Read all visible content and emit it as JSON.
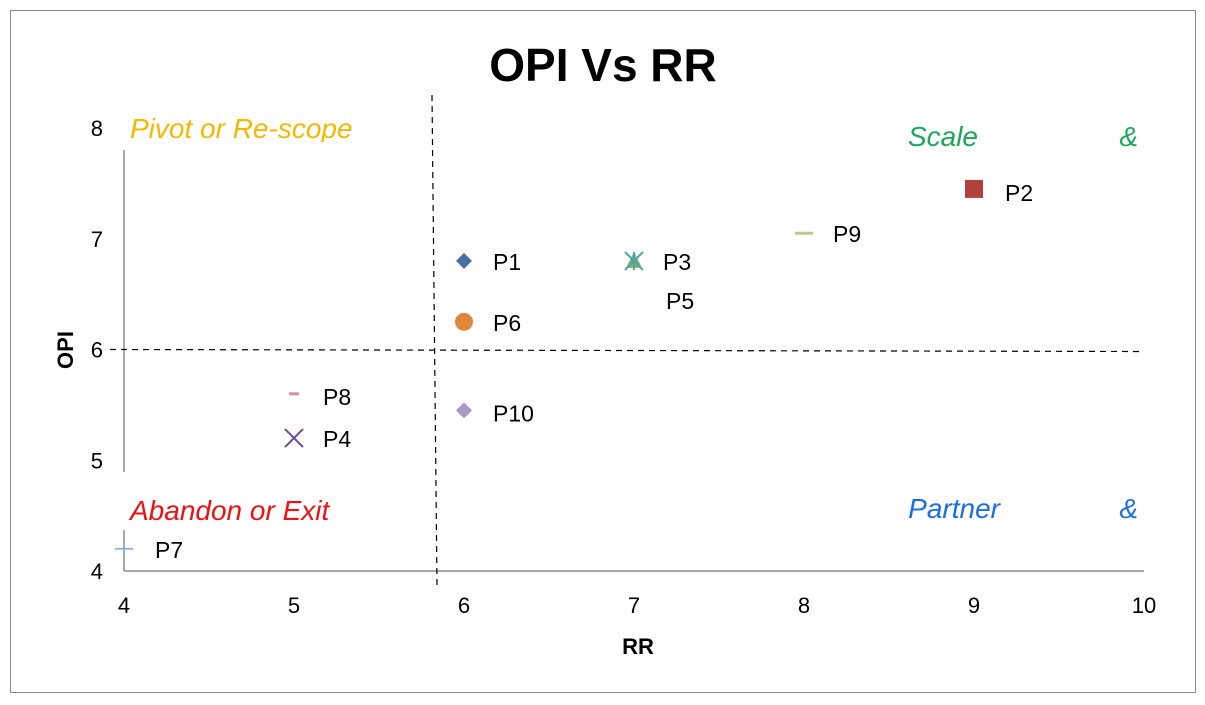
{
  "chart_data": {
    "type": "scatter",
    "title": "OPI Vs RR",
    "xlabel": "RR",
    "ylabel": "OPI",
    "xlim": [
      4,
      10
    ],
    "ylim": [
      4,
      8
    ],
    "xticks": [
      "4",
      "5",
      "6",
      "7",
      "8",
      "9",
      "10"
    ],
    "yticks": [
      "4",
      "5",
      "6",
      "7",
      "8"
    ],
    "reference_lines": {
      "x": 5.83,
      "y": 6.0
    },
    "points": [
      {
        "label": "P1",
        "x": 6,
        "y": 6.8,
        "marker": "diamond",
        "color": "#4a6fa5"
      },
      {
        "label": "P2",
        "x": 9,
        "y": 7.45,
        "marker": "square",
        "color": "#b0413e"
      },
      {
        "label": "P3",
        "x": 7,
        "y": 6.8,
        "marker": "triangle",
        "color": "#8fae4a"
      },
      {
        "label": "P4",
        "x": 5,
        "y": 5.2,
        "marker": "x",
        "color": "#6b4c9a"
      },
      {
        "label": "P5",
        "x": 7,
        "y": 6.8,
        "marker": "star",
        "color": "#4aa3b8"
      },
      {
        "label": "P6",
        "x": 6,
        "y": 6.25,
        "marker": "circle",
        "color": "#e0873a"
      },
      {
        "label": "P7",
        "x": 4,
        "y": 4.2,
        "marker": "plus",
        "color": "#8aa9d6"
      },
      {
        "label": "P8",
        "x": 5,
        "y": 5.6,
        "marker": "dash",
        "color": "#d9908e"
      },
      {
        "label": "P9",
        "x": 8,
        "y": 7.05,
        "marker": "dash",
        "color": "#b4cc8a"
      },
      {
        "label": "P10",
        "x": 6,
        "y": 5.45,
        "marker": "diamond",
        "color": "#a898c8"
      }
    ],
    "quadrant_labels": [
      {
        "text": "Pivot or Re-scope",
        "color": "#f5b800"
      },
      {
        "text": "Scale",
        "color": "#1aa85a"
      },
      {
        "text": "&",
        "color": "#1aa85a"
      },
      {
        "text": "Abandon or Exit",
        "color": "#ee1111"
      },
      {
        "text": "Partner",
        "color": "#1a6ee8"
      },
      {
        "text": "&",
        "color": "#1a6ee8"
      }
    ],
    "grid": false,
    "legend": "none"
  }
}
